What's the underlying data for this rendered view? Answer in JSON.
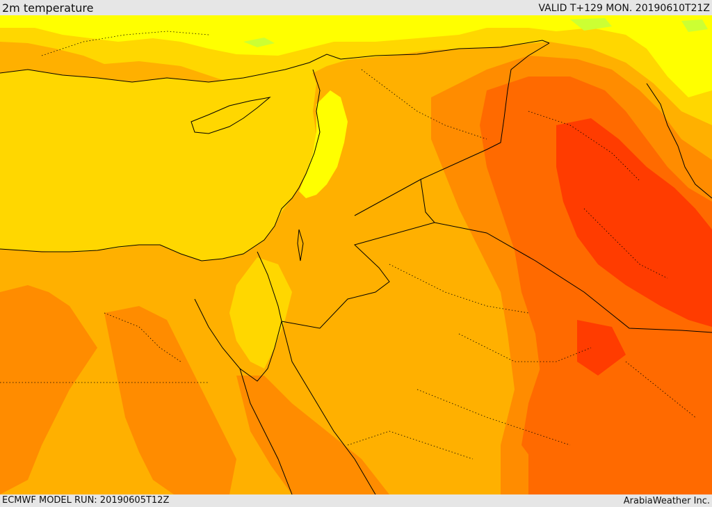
{
  "header": {
    "title": "2m temperature",
    "valid_time": "VALID T+129 MON. 20190610T21Z"
  },
  "footer": {
    "model_run": "ECMWF MODEL RUN: 20190605T12Z",
    "credit": "ArabiaWeather Inc."
  },
  "palette": {
    "very_light": "#ffff00",
    "light": "#ffd700",
    "mid": "#ffb000",
    "warm": "#ff8c00",
    "hot": "#ff6a00",
    "very_hot": "#ff3c00",
    "cool_green": "#ccff33",
    "border": "#000000"
  }
}
